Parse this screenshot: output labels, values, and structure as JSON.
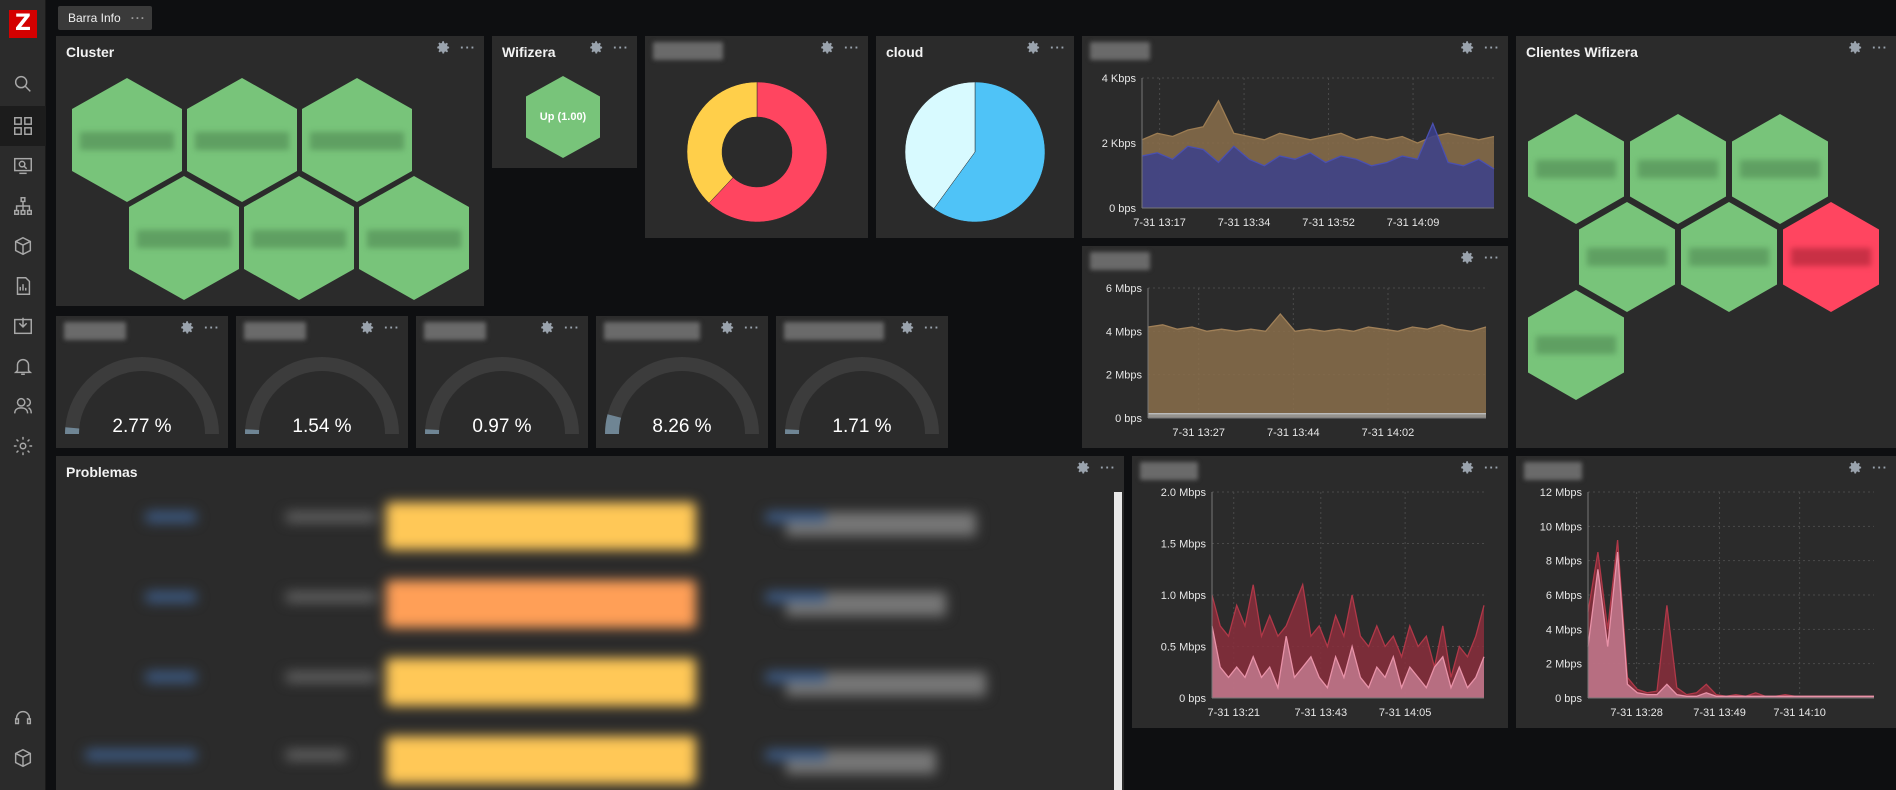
{
  "sidebar": {
    "logo": "Z",
    "icons": [
      "search-icon",
      "dashboards-icon",
      "monitoring-icon",
      "network-map-icon",
      "inventory-icon",
      "reports-icon",
      "data-collection-icon",
      "alerts-icon",
      "users-icon",
      "settings-icon",
      "support-icon",
      "integrations-icon"
    ]
  },
  "tab": {
    "label": "Barra Info",
    "more": "···"
  },
  "widgets": {
    "cluster": {
      "title": "Cluster"
    },
    "wifizera": {
      "title": "Wifizera",
      "status": "Up (1.00)"
    },
    "cloud": {
      "title": "cloud"
    },
    "clientes": {
      "title": "Clientes Wifizera"
    },
    "problemas": {
      "title": "Problemas"
    },
    "gauges": [
      {
        "value": "2.77 %",
        "level": 0.0277
      },
      {
        "value": "1.54 %",
        "level": 0.0154
      },
      {
        "value": "0.97 %",
        "level": 0.0097
      },
      {
        "value": "8.26 %",
        "level": 0.0826
      },
      {
        "value": "1.71 %",
        "level": 0.0171
      }
    ]
  },
  "colors": {
    "green": "#78c47a",
    "red": "#ff4560",
    "yellow": "#ffcf4a",
    "blue": "#4fc3f7",
    "light_blue": "#d8faff",
    "brown_area": "#8a6e4b",
    "purple_area": "#3b3f8c",
    "crimson_area": "#8a2e3c",
    "pink_line": "#e892a8"
  },
  "chart_data": [
    {
      "type": "area",
      "y_ticks": [
        "4 Kbps",
        "2 Kbps",
        "0 bps"
      ],
      "x_ticks": [
        "7-31 13:17",
        "7-31 13:34",
        "7-31 13:52",
        "7-31 14:09"
      ],
      "ylim": [
        0,
        4
      ],
      "series": [
        {
          "values": [
            2.1,
            2.3,
            2.2,
            2.4,
            2.5,
            3.3,
            2.3,
            2.2,
            2.1,
            2.3,
            2.2,
            2.1,
            2.2,
            2.3,
            2.1,
            2.2,
            2.1,
            2.2,
            2.0,
            2.2,
            2.3,
            2.2,
            2.1,
            2.2
          ]
        },
        {
          "values": [
            1.6,
            1.7,
            1.5,
            1.9,
            1.8,
            1.4,
            1.9,
            1.5,
            1.3,
            1.6,
            1.5,
            1.7,
            1.4,
            1.6,
            1.5,
            1.3,
            1.4,
            1.6,
            1.5,
            2.6,
            1.4,
            1.3,
            1.5,
            1.2
          ]
        }
      ]
    },
    {
      "type": "area",
      "y_ticks": [
        "6 Mbps",
        "4 Mbps",
        "2 Mbps",
        "0 bps"
      ],
      "x_ticks": [
        "7-31 13:27",
        "7-31 13:44",
        "7-31 14:02"
      ],
      "ylim": [
        0,
        6
      ],
      "series": [
        {
          "values": [
            4.2,
            4.3,
            4.1,
            4.2,
            4.0,
            4.1,
            4.0,
            4.1,
            4.0,
            4.8,
            4.0,
            4.1,
            4.0,
            4.1,
            4.0,
            4.2,
            4.1,
            4.0,
            4.2,
            4.1,
            4.3,
            4.1,
            4.0,
            4.2
          ]
        },
        {
          "values": [
            0.2,
            0.2,
            0.2,
            0.2,
            0.2,
            0.2,
            0.2,
            0.2,
            0.2,
            0.2,
            0.2,
            0.2,
            0.2,
            0.2,
            0.2,
            0.2,
            0.2,
            0.2,
            0.2,
            0.2,
            0.2,
            0.2,
            0.2,
            0.2
          ]
        }
      ]
    },
    {
      "type": "area",
      "y_ticks": [
        "2.0 Mbps",
        "1.5 Mbps",
        "1.0 Mbps",
        "0.5 Mbps",
        "0 bps"
      ],
      "x_ticks": [
        "7-31 13:21",
        "7-31 13:43",
        "7-31 14:05"
      ],
      "ylim": [
        0,
        2
      ],
      "series": [
        {
          "values": [
            1.0,
            0.7,
            0.6,
            0.9,
            0.7,
            1.1,
            0.6,
            0.8,
            0.6,
            0.7,
            0.9,
            1.1,
            0.6,
            0.7,
            0.5,
            0.8,
            0.6,
            1.0,
            0.6,
            0.5,
            0.7,
            0.5,
            0.6,
            0.4,
            0.7,
            0.5,
            0.6,
            0.3,
            0.7,
            0.2,
            0.5,
            0.4,
            0.6,
            0.9
          ]
        },
        {
          "values": [
            0.7,
            0.3,
            0.2,
            0.3,
            0.2,
            0.4,
            0.2,
            0.3,
            0.1,
            0.6,
            0.2,
            0.3,
            0.4,
            0.2,
            0.1,
            0.4,
            0.2,
            0.5,
            0.2,
            0.1,
            0.3,
            0.2,
            0.4,
            0.1,
            0.3,
            0.2,
            0.1,
            0.3,
            0.4,
            0.1,
            0.3,
            0.1,
            0.2,
            0.4
          ]
        }
      ]
    },
    {
      "type": "area",
      "y_ticks": [
        "12 Mbps",
        "10 Mbps",
        "8 Mbps",
        "6 Mbps",
        "4 Mbps",
        "2 Mbps",
        "0 bps"
      ],
      "x_ticks": [
        "7-31 13:28",
        "7-31 13:49",
        "7-31 14:10"
      ],
      "ylim": [
        0,
        12
      ],
      "series": [
        {
          "values": [
            5,
            8.5,
            4,
            9.2,
            1.2,
            0.5,
            0.3,
            0.4,
            5.4,
            0.6,
            0.2,
            0.3,
            0.8,
            0.2,
            0.1,
            0.2,
            0.1,
            0.3,
            0.1,
            0.1,
            0.2,
            0.1,
            0.1,
            0.1,
            0.1,
            0.1,
            0.1,
            0.1,
            0.1,
            0.1
          ]
        },
        {
          "values": [
            3,
            7.5,
            3,
            8.5,
            0.8,
            0.3,
            0.2,
            0.2,
            0.8,
            0.2,
            0.1,
            0.1,
            0.3,
            0.1,
            0.1,
            0.1,
            0.1,
            0.1,
            0.1,
            0.1,
            0.1,
            0.1,
            0.1,
            0.1,
            0.1,
            0.1,
            0.1,
            0.1,
            0.1,
            0.1
          ]
        }
      ]
    },
    {
      "type": "pie",
      "slices": [
        {
          "value": 62,
          "color": "#ff4560"
        },
        {
          "value": 38,
          "color": "#ffcf4a"
        }
      ],
      "donut": true
    },
    {
      "type": "pie",
      "slices": [
        {
          "value": 60,
          "color": "#4fc3f7"
        },
        {
          "value": 40,
          "color": "#d8faff"
        }
      ],
      "donut": false
    }
  ]
}
